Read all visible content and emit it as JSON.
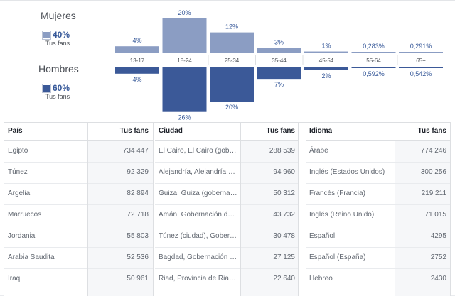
{
  "legend": {
    "women": {
      "title": "Mujeres",
      "percent": "40%",
      "caption": "Tus fans",
      "color": "#8b9dc3"
    },
    "men": {
      "title": "Hombres",
      "percent": "60%",
      "caption": "Tus fans",
      "color": "#3b5998"
    }
  },
  "chart_data": {
    "type": "bar",
    "categories": [
      "13-17",
      "18-24",
      "25-34",
      "35-44",
      "45-54",
      "55-64",
      "65+"
    ],
    "series": [
      {
        "name": "Mujeres",
        "values": [
          4,
          20,
          12,
          3,
          1,
          0.283,
          0.291
        ],
        "labels": [
          "4%",
          "20%",
          "12%",
          "3%",
          "1%",
          "0,283%",
          "0,291%"
        ],
        "color": "#8b9dc3"
      },
      {
        "name": "Hombres",
        "values": [
          4,
          26,
          20,
          7,
          2,
          0.592,
          0.542
        ],
        "labels": [
          "4%",
          "26%",
          "20%",
          "7%",
          "2%",
          "0,592%",
          "0,542%"
        ],
        "color": "#3b5998"
      }
    ]
  },
  "tables": [
    {
      "header_label": "País",
      "header_value": "Tus fans",
      "rows": [
        {
          "label": "Egipto",
          "value": "734 447"
        },
        {
          "label": "Túnez",
          "value": "92 329"
        },
        {
          "label": "Argelia",
          "value": "82 894"
        },
        {
          "label": "Marruecos",
          "value": "72 718"
        },
        {
          "label": "Jordania",
          "value": "55 803"
        },
        {
          "label": "Arabia Saudita",
          "value": "52 536"
        },
        {
          "label": "Iraq",
          "value": "50 961"
        }
      ]
    },
    {
      "header_label": "Ciudad",
      "header_value": "Tus fans",
      "rows": [
        {
          "label": "El Cairo, El Cairo (gob…",
          "value": "288 539"
        },
        {
          "label": "Alejandría, Alejandría …",
          "value": "94 960"
        },
        {
          "label": "Guiza, Guiza (goberna…",
          "value": "50 312"
        },
        {
          "label": "Amán, Gobernación d…",
          "value": "43 732"
        },
        {
          "label": "Túnez (ciudad), Gober…",
          "value": "30 478"
        },
        {
          "label": "Bagdad, Gobernación …",
          "value": "27 125"
        },
        {
          "label": "Riad, Provincia de Ria…",
          "value": "22 640"
        }
      ]
    },
    {
      "header_label": "Idioma",
      "header_value": "Tus fans",
      "rows": [
        {
          "label": "Árabe",
          "value": "774 246"
        },
        {
          "label": "Inglés (Estados Unidos)",
          "value": "300 256"
        },
        {
          "label": "Francés (Francia)",
          "value": "219 211"
        },
        {
          "label": "Inglés (Reino Unido)",
          "value": "71 015"
        },
        {
          "label": "Español",
          "value": "4295"
        },
        {
          "label": "Español (España)",
          "value": "2752"
        },
        {
          "label": "Hebreo",
          "value": "2430"
        }
      ]
    }
  ]
}
